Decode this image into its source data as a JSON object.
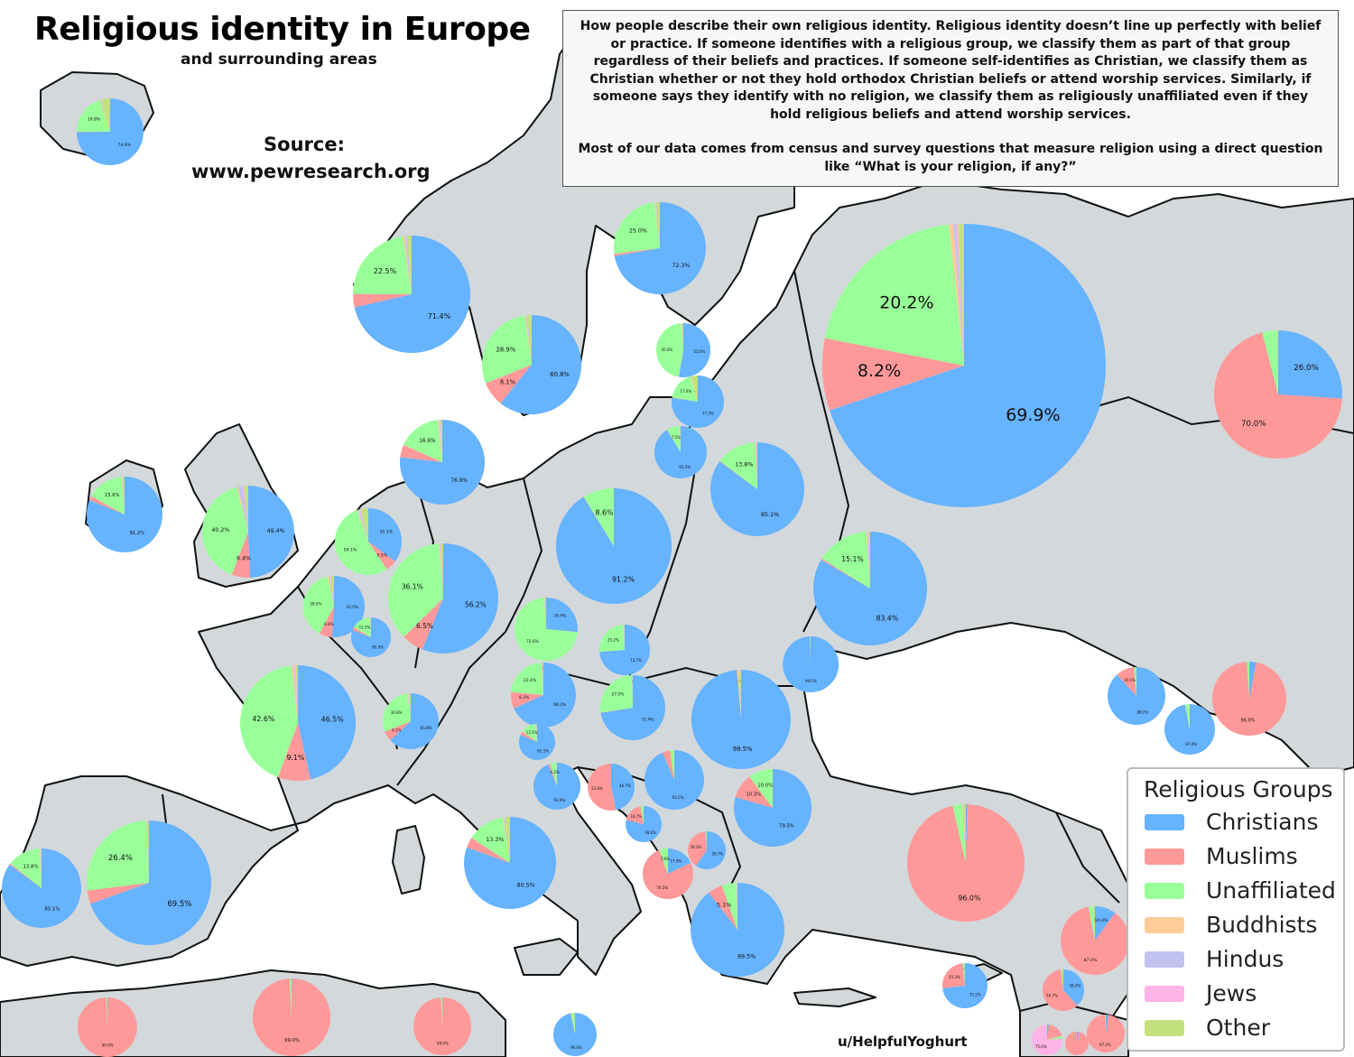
{
  "title": "Religious identity in Europe",
  "subtitle": "and surrounding areas",
  "source": {
    "label": "Source:",
    "url": "www.pewresearch.org"
  },
  "description": [
    "How people describe their own religious identity. Religious identity doesn’t line up perfectly with belief or practice. If someone identifies with a religious group, we classify them as part of that group regardless of their beliefs and practices. If someone self-identifies as Christian, we classify them as Christian whether or not they hold orthodox Christian beliefs or attend worship services. Similarly, if someone says they identify with no religion, we classify them as religiously unaffiliated even if they hold religious beliefs and attend worship services.",
    "Most of our data comes from census and survey questions that measure religion using a direct question like “What is your religion, if any?”"
  ],
  "credit": "u/HelpfulYoghurt",
  "legend": {
    "title": "Religious Groups",
    "items": [
      {
        "label": "Christians",
        "color": "#66b3ff"
      },
      {
        "label": "Muslims",
        "color": "#ff9999"
      },
      {
        "label": "Unaffiliated",
        "color": "#99ff99"
      },
      {
        "label": "Buddhists",
        "color": "#ffcc99"
      },
      {
        "label": "Hindus",
        "color": "#c2c2f0"
      },
      {
        "label": "Jews",
        "color": "#ffb3e6"
      },
      {
        "label": "Other",
        "color": "#c4e17f"
      }
    ]
  },
  "colors": {
    "land": "#d3d8db",
    "border": "#111111",
    "sea": "#ffffff"
  },
  "pies": [
    {
      "region": "iceland",
      "values": [
        74.9,
        0.2,
        19.8,
        0.4,
        0.3,
        0.1,
        4.3
      ],
      "labels": [
        "74.9%",
        "19.8%"
      ]
    },
    {
      "region": "norway",
      "values": [
        71.4,
        3.7,
        22.5,
        0.5,
        0.5,
        0.1,
        1.3
      ],
      "labels": [
        "71.4%",
        "22.5%"
      ]
    },
    {
      "region": "sweden",
      "values": [
        60.8,
        8.1,
        28.9,
        0.4,
        0.3,
        0.1,
        1.4
      ],
      "labels": [
        "60.8%",
        "28.9%",
        "8.1%"
      ]
    },
    {
      "region": "finland",
      "values": [
        72.3,
        0.8,
        25.0,
        0.3,
        0.2,
        0.1,
        1.3
      ],
      "labels": [
        "72.3%",
        "25.0%"
      ]
    },
    {
      "region": "estonia",
      "values": [
        52.6,
        0.2,
        45.6,
        0.2,
        0.2,
        0.1,
        1.1
      ],
      "labels": [
        "52.6%",
        "45.6%"
      ]
    },
    {
      "region": "latvia",
      "values": [
        77.3,
        0.3,
        17.6,
        0.2,
        0.2,
        0.1,
        4.3
      ],
      "labels": [
        "77.3%",
        "17.6%"
      ]
    },
    {
      "region": "lithuania",
      "values": [
        91.2,
        0.2,
        7.5,
        0.1,
        0.1,
        0.1,
        0.8
      ],
      "labels": [
        "91.2%",
        "7.5%"
      ]
    },
    {
      "region": "denmark",
      "values": [
        76.9,
        4.8,
        16.6,
        0.5,
        0.5,
        0.1,
        0.6
      ],
      "labels": [
        "76.9%",
        "16.6%"
      ]
    },
    {
      "region": "ireland",
      "values": [
        81.2,
        1.8,
        15.6,
        0.3,
        0.3,
        0.1,
        0.7
      ],
      "labels": [
        "81.2%",
        "15.6%"
      ]
    },
    {
      "region": "uk",
      "values": [
        49.4,
        6.4,
        40.2,
        0.5,
        1.5,
        0.5,
        1.5
      ],
      "labels": [
        "49.4%",
        "40.2%",
        "6.4%"
      ]
    },
    {
      "region": "netherlands",
      "values": [
        35.1,
        5.5,
        54.1,
        0.6,
        0.8,
        0.3,
        3.6
      ],
      "labels": [
        "35.1%",
        "54.1%",
        "5.5%"
      ]
    },
    {
      "region": "belgium",
      "values": [
        51.0,
        6.8,
        39.0,
        0.5,
        0.5,
        0.5,
        1.7
      ],
      "labels": [
        "51.0%",
        "39.0%",
        "6.8%"
      ]
    },
    {
      "region": "luxembourg",
      "values": [
        80.9,
        2.5,
        15.5,
        0.3,
        0.2,
        0.2,
        0.4
      ],
      "labels": [
        "80.9%",
        "15.5%"
      ]
    },
    {
      "region": "germany",
      "values": [
        56.2,
        6.5,
        36.1,
        0.3,
        0.3,
        0.2,
        0.4
      ],
      "labels": [
        "56.2%",
        "36.1%",
        "6.5%"
      ]
    },
    {
      "region": "france",
      "values": [
        46.5,
        9.1,
        42.6,
        0.5,
        0.2,
        0.5,
        0.6
      ],
      "labels": [
        "46.5%",
        "42.6%",
        "9.1%"
      ]
    },
    {
      "region": "switzerland",
      "values": [
        65.8,
        6.1,
        30.8,
        0.3,
        0.3,
        0.3,
        0.8
      ],
      "labels": [
        "65.8%",
        "30.8%",
        "6.1%"
      ]
    },
    {
      "region": "poland",
      "values": [
        91.2,
        0.1,
        8.6,
        0.0,
        0.0,
        0.0,
        0.1
      ],
      "labels": [
        "91.2%",
        "8.6%"
      ]
    },
    {
      "region": "czechia",
      "values": [
        26.4,
        0.1,
        72.6,
        0.2,
        0.1,
        0.1,
        0.5
      ],
      "labels": [
        "26.4%",
        "72.6%"
      ]
    },
    {
      "region": "slovakia",
      "values": [
        73.7,
        0.1,
        25.2,
        0.2,
        0.2,
        0.2,
        0.4
      ],
      "labels": [
        "73.7%",
        "25.2%"
      ]
    },
    {
      "region": "austria",
      "values": [
        68.2,
        8.3,
        22.4,
        0.3,
        0.2,
        0.2,
        0.4
      ],
      "labels": [
        "68.2%",
        "22.4%",
        "8.3%"
      ]
    },
    {
      "region": "hungary",
      "values": [
        72.4,
        0.2,
        27.0,
        0.1,
        0.1,
        0.1,
        0.1
      ],
      "labels": [
        "72.4%",
        "27.0%"
      ]
    },
    {
      "region": "slovenia",
      "values": [
        81.5,
        3.5,
        13.5,
        0.3,
        0.3,
        0.3,
        0.6
      ],
      "labels": [
        "81.5%",
        "13.5%"
      ]
    },
    {
      "region": "belarus",
      "values": [
        85.1,
        0.2,
        13.8,
        0.2,
        0.2,
        0.2,
        0.3
      ],
      "labels": [
        "85.1%",
        "13.8%"
      ]
    },
    {
      "region": "ukraine",
      "values": [
        83.4,
        0.4,
        15.1,
        0.2,
        0.2,
        0.3,
        0.4
      ],
      "labels": [
        "83.4%",
        "15.1%"
      ]
    },
    {
      "region": "moldova",
      "values": [
        99.5,
        0.1,
        0.2,
        0.0,
        0.0,
        0.0,
        0.2
      ],
      "labels": [
        "99.5%"
      ]
    },
    {
      "region": "romania",
      "values": [
        98.5,
        0.3,
        0.3,
        0.2,
        0.2,
        0.2,
        0.3
      ],
      "labels": [
        "98.5%"
      ]
    },
    {
      "region": "russia",
      "values": [
        69.9,
        8.2,
        20.2,
        0.5,
        0.3,
        0.2,
        0.7
      ],
      "labels": [
        "69.9%",
        "20.2%",
        "8.2%"
      ]
    },
    {
      "region": "kazakhstan",
      "values": [
        26.0,
        70.0,
        3.8,
        0.1,
        0.0,
        0.0,
        0.1
      ],
      "labels": [
        "26.0%",
        "70.0%"
      ]
    },
    {
      "region": "croatia",
      "values": [
        93.9,
        1.4,
        4.2,
        0.1,
        0.1,
        0.1,
        0.2
      ],
      "labels": [
        "93.9%",
        "4.2%"
      ]
    },
    {
      "region": "bosnia",
      "values": [
        46.7,
        53.6,
        0.0,
        0.0,
        0.0,
        0.0,
        0.0
      ],
      "labels": [
        "46.7%",
        "53.6%"
      ]
    },
    {
      "region": "serbia",
      "values": [
        93.5,
        4.2,
        2.2,
        0.1,
        0.0,
        0.0,
        0.0
      ],
      "labels": [
        "93.5%"
      ]
    },
    {
      "region": "montenegro",
      "values": [
        78.6,
        18.7,
        2.7,
        0.0,
        0.0,
        0.0,
        0.0
      ],
      "labels": [
        "18.7%",
        "78.6%"
      ]
    },
    {
      "region": "italy",
      "values": [
        80.5,
        3.7,
        13.3,
        0.2,
        0.3,
        0.1,
        1.9
      ],
      "labels": [
        "80.5%",
        "13.3%"
      ]
    },
    {
      "region": "bulgaria",
      "values": [
        79.5,
        10.3,
        10.0,
        0.0,
        0.0,
        0.0,
        0.2
      ],
      "labels": [
        "79.5%",
        "10.0%",
        "10.3%"
      ]
    },
    {
      "region": "albania",
      "values": [
        17.9,
        76.5,
        5.6,
        0.0,
        0.0,
        0.0,
        0.0
      ],
      "labels": [
        "17.9%",
        "76.5%",
        "5.6%"
      ]
    },
    {
      "region": "north-macedonia",
      "values": [
        59.7,
        39.3,
        1.0,
        0.0,
        0.0,
        0.0,
        0.0
      ],
      "labels": [
        "59.7%",
        "39.3%"
      ]
    },
    {
      "region": "greece",
      "values": [
        89.5,
        5.1,
        5.0,
        0.1,
        0.1,
        0.1,
        0.1
      ],
      "labels": [
        "89.5%",
        "5.1%"
      ]
    },
    {
      "region": "turkey",
      "values": [
        0.4,
        96.0,
        2.6,
        0.1,
        0.1,
        0.1,
        0.7
      ],
      "labels": [
        "96.0%"
      ]
    },
    {
      "region": "portugal",
      "values": [
        85.1,
        0.5,
        13.8,
        0.3,
        0.2,
        0.1,
        0.0
      ],
      "labels": [
        "85.1%",
        "13.8%"
      ]
    },
    {
      "region": "spain",
      "values": [
        69.5,
        3.5,
        26.4,
        0.1,
        0.2,
        0.1,
        0.2
      ],
      "labels": [
        "69.5%",
        "26.4%"
      ]
    },
    {
      "region": "georgia",
      "values": [
        88.2,
        10.5,
        1.3,
        0.0,
        0.0,
        0.0,
        0.0
      ],
      "labels": [
        "88.2%",
        "10.5%"
      ]
    },
    {
      "region": "armenia",
      "values": [
        97.0,
        0.1,
        2.5,
        0.0,
        0.0,
        0.0,
        0.4
      ],
      "labels": [
        "97.0%"
      ]
    },
    {
      "region": "azerbaijan",
      "values": [
        3.0,
        96.0,
        1.0,
        0.0,
        0.0,
        0.0,
        0.0
      ],
      "labels": [
        "96.0%"
      ]
    },
    {
      "region": "syria",
      "values": [
        10.0,
        87.0,
        2.0,
        0.0,
        0.0,
        0.0,
        1.0
      ],
      "labels": [
        "10.0%",
        "87.0%"
      ]
    },
    {
      "region": "cyprus",
      "values": [
        73.2,
        25.3,
        1.2,
        0.1,
        0.1,
        0.0,
        0.1
      ],
      "labels": [
        "73.2%",
        "25.3%"
      ]
    },
    {
      "region": "lebanon",
      "values": [
        38.3,
        59.7,
        0.5,
        0.0,
        0.0,
        0.0,
        1.5
      ],
      "labels": [
        "38.3%",
        "59.7%"
      ]
    },
    {
      "region": "morocco",
      "values": [
        0.3,
        99.0,
        0.2,
        0.0,
        0.0,
        0.1,
        0.4
      ],
      "labels": [
        "99.0%"
      ]
    },
    {
      "region": "algeria",
      "values": [
        0.2,
        99.0,
        0.7,
        0.0,
        0.0,
        0.0,
        0.1
      ],
      "labels": [
        "99.0%"
      ]
    },
    {
      "region": "tunisia",
      "values": [
        0.2,
        99.0,
        0.6,
        0.0,
        0.0,
        0.0,
        0.2
      ],
      "labels": [
        "99.0%"
      ]
    },
    {
      "region": "malta",
      "values": [
        96.6,
        0.5,
        2.4,
        0.0,
        0.0,
        0.0,
        0.5
      ],
      "labels": [
        "96.6%"
      ]
    },
    {
      "region": "israel",
      "values": [
        2.0,
        18.6,
        3.1,
        0.0,
        0.0,
        75.6,
        0.7
      ],
      "labels": [
        "75.6%"
      ]
    },
    {
      "region": "jordan",
      "values": [
        2.2,
        97.2,
        0.1,
        0.0,
        0.0,
        0.0,
        0.5
      ],
      "labels": [
        "97.2%"
      ]
    },
    {
      "region": "palestine",
      "values": [
        2.4,
        97.5,
        0.1,
        0.0,
        0.0,
        0.0,
        0.0
      ],
      "labels": []
    }
  ]
}
